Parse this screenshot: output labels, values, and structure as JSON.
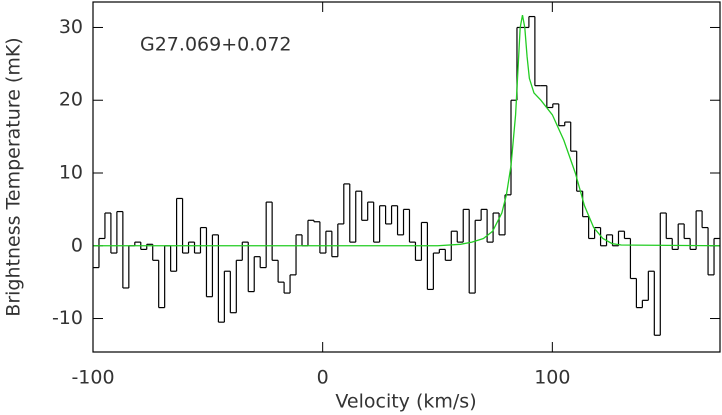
{
  "chart_data": {
    "type": "step",
    "annotation": "G27.069+0.072",
    "xlabel": "Velocity (km/s)",
    "ylabel": "Brightness Temperature (mK)",
    "xlim": [
      -100,
      173
    ],
    "ylim": [
      -14.6,
      33.5
    ],
    "xticks": [
      -100,
      0,
      100
    ],
    "yticks": [
      -10,
      0,
      10,
      20,
      30
    ],
    "series": [
      {
        "name": "spectrum",
        "color": "#000000",
        "x": [
          -98.7,
          -96.1,
          -93.5,
          -90.9,
          -88.3,
          -85.7,
          -83.1,
          -80.5,
          -77.9,
          -75.3,
          -72.7,
          -70.1,
          -67.5,
          -64.9,
          -62.3,
          -59.7,
          -57.1,
          -54.5,
          -51.9,
          -49.3,
          -46.7,
          -44.1,
          -41.5,
          -38.9,
          -36.3,
          -33.7,
          -31.1,
          -28.5,
          -25.9,
          -23.3,
          -20.7,
          -18.1,
          -15.5,
          -12.9,
          -10.3,
          -7.7,
          -5.1,
          -2.5,
          0.1,
          2.7,
          5.3,
          7.9,
          10.5,
          13.1,
          15.7,
          18.3,
          20.9,
          23.5,
          26.1,
          28.7,
          31.3,
          33.9,
          36.5,
          39.1,
          41.7,
          44.3,
          46.9,
          49.5,
          52.1,
          54.7,
          57.3,
          59.9,
          62.5,
          65.1,
          67.7,
          70.3,
          72.9,
          75.5,
          78.1,
          80.7,
          83.3,
          85.9,
          88.5,
          91.1,
          93.7,
          96.3,
          98.9,
          101.5,
          104.1,
          106.7,
          109.3,
          111.9,
          114.5,
          117.1,
          119.7,
          122.3,
          124.9,
          127.5,
          130.1,
          132.7,
          135.3,
          137.9,
          140.5,
          143.1,
          145.7,
          148.3,
          150.9,
          153.5,
          156.1,
          158.7,
          161.3,
          163.9,
          166.5,
          169.1,
          171.7
        ],
        "values": [
          -3,
          1,
          4.5,
          -1,
          4.7,
          -5.8,
          0,
          0.5,
          -0.5,
          0.2,
          -2,
          -8.5,
          0,
          -3.5,
          6.5,
          -1,
          0.5,
          -1,
          2.5,
          -7,
          1.5,
          -10.5,
          -3.5,
          -9.2,
          -2,
          0.5,
          -6.3,
          -1.5,
          -3,
          6,
          -2,
          -5,
          -6.5,
          -4,
          1.5,
          0,
          3.5,
          3.3,
          -1,
          2,
          -1.5,
          3,
          8.5,
          0.5,
          7.5,
          3.5,
          6,
          0.5,
          5.5,
          3,
          5.5,
          1.5,
          5,
          0.5,
          -2,
          3.2,
          -6,
          -1,
          -0.5,
          -2,
          2,
          0.5,
          5,
          -6.5,
          3.5,
          5,
          0.5,
          4.5,
          1.5,
          7,
          20,
          30,
          30,
          31.5,
          22,
          22,
          19,
          19.5,
          16.5,
          17,
          13,
          7.5,
          4,
          1,
          2.5,
          0,
          1.5,
          0,
          2,
          1,
          -4.5,
          -8.5,
          -7.5,
          -3.5,
          -12.3,
          4.5,
          1,
          -0.5,
          3,
          1,
          -0.5,
          4.8,
          2.5,
          -4,
          1
        ]
      },
      {
        "name": "fit",
        "color": "#22cc22",
        "x": [
          -100,
          50,
          60,
          65,
          70,
          74,
          78,
          80,
          82,
          84,
          85,
          86,
          87,
          88,
          89,
          90,
          92,
          95,
          100,
          105,
          110,
          114,
          118,
          122,
          126,
          130,
          173
        ],
        "values": [
          0,
          0,
          0.2,
          0.5,
          1,
          2,
          4.5,
          7,
          11,
          18,
          24,
          30,
          31.7,
          30,
          26,
          23,
          21,
          20,
          18,
          14.5,
          10,
          5.5,
          2.5,
          1,
          0.3,
          0.1,
          0
        ]
      }
    ]
  }
}
